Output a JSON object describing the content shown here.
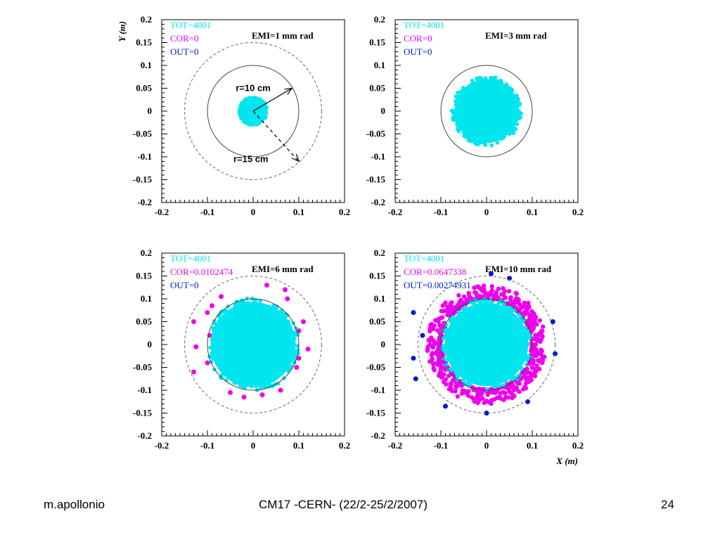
{
  "colors": {
    "tot": "#00e5ee",
    "cor": "#ee00ee",
    "out": "#0019cc",
    "frame": "#000000"
  },
  "footer": {
    "author": "m.apollonio",
    "title": "CM17 -CERN-  (22/2-25/2/2007)",
    "page": "24"
  },
  "chart_data": [
    {
      "type": "scatter",
      "title": "EMI=1 mm rad",
      "xlim": [
        -0.2,
        0.2
      ],
      "ylim": [
        -0.2,
        0.2
      ],
      "xticks": [
        "-0.2",
        "-0.1",
        "0",
        "0.1",
        "0.2"
      ],
      "yticks": [
        "0.2",
        "0.15",
        "0.1",
        "0.05",
        "0",
        "-0.05",
        "-0.1",
        "-0.15",
        "-0.2"
      ],
      "xlabel": "",
      "ylabel": "Y (m)",
      "legend": [
        "TOT=4001",
        "COR=0",
        "OUT=0"
      ],
      "core_radius": 0.03,
      "circles": [
        {
          "r": 0.1,
          "style": "solid"
        },
        {
          "r": 0.15,
          "style": "dashed"
        }
      ],
      "annotations": [
        {
          "text": "r=10 cm",
          "x": 0.0,
          "y": 0.05
        },
        {
          "text": "r=15 cm",
          "x": -0.005,
          "y": -0.105
        }
      ],
      "arrows": [
        {
          "from": [
            0,
            0
          ],
          "to": [
            0.085,
            0.05
          ],
          "style": "solid"
        },
        {
          "from": [
            0,
            0
          ],
          "to": [
            0.1,
            -0.11
          ],
          "style": "dashed"
        }
      ],
      "cor_points": [],
      "out_points": []
    },
    {
      "type": "scatter",
      "title": "EMI=3 mm rad",
      "xlim": [
        -0.2,
        0.2
      ],
      "ylim": [
        -0.2,
        0.2
      ],
      "xticks": [
        "-0.2",
        "-0.1",
        "0",
        "0.1",
        "0.2"
      ],
      "yticks": [
        "0.2",
        "0.15",
        "0.1",
        "0.05",
        "0",
        "-0.05",
        "-0.1",
        "-0.15",
        "-0.2"
      ],
      "xlabel": "",
      "ylabel": "",
      "legend": [
        "TOT=4001",
        "COR=0",
        "OUT=0"
      ],
      "core_radius": 0.075,
      "circles": [
        {
          "r": 0.1,
          "style": "solid"
        }
      ],
      "cor_points": [],
      "out_points": []
    },
    {
      "type": "scatter",
      "title": "EMI=6 mm rad",
      "xlim": [
        -0.2,
        0.2
      ],
      "ylim": [
        -0.2,
        0.2
      ],
      "xticks": [
        "-0.2",
        "-0.1",
        "0",
        "0.1",
        "0.2"
      ],
      "yticks": [
        "0.2",
        "0.15",
        "0.1",
        "0.05",
        "0",
        "-0.05",
        "-0.1",
        "-0.15",
        "-0.2"
      ],
      "xlabel": "",
      "ylabel": "",
      "legend": [
        "TOT=4001",
        "COR=0.0102474",
        "OUT=0"
      ],
      "core_radius": 0.1,
      "circles": [
        {
          "r": 0.1,
          "style": "solid"
        },
        {
          "r": 0.15,
          "style": "dashed"
        }
      ],
      "cor_points": [
        [
          0.03,
          0.13
        ],
        [
          0.07,
          0.12
        ],
        [
          -0.07,
          0.105
        ],
        [
          -0.13,
          0.05
        ],
        [
          -0.125,
          -0.005
        ],
        [
          -0.13,
          -0.06
        ],
        [
          0.11,
          0.05
        ],
        [
          0.12,
          -0.01
        ],
        [
          0.1,
          0.03
        ],
        [
          -0.1,
          0.07
        ],
        [
          -0.09,
          0.085
        ],
        [
          0.02,
          -0.11
        ],
        [
          -0.05,
          -0.105
        ],
        [
          0.06,
          -0.1
        ],
        [
          -0.02,
          -0.115
        ],
        [
          0.095,
          -0.05
        ],
        [
          -0.1,
          -0.04
        ],
        [
          -0.095,
          0.02
        ],
        [
          0.1,
          -0.03
        ],
        [
          0.075,
          0.1
        ]
      ],
      "out_points": []
    },
    {
      "type": "scatter",
      "title": "EMI=10 mm rad",
      "xlim": [
        -0.2,
        0.2
      ],
      "ylim": [
        -0.2,
        0.2
      ],
      "xticks": [
        "-0.2",
        "-0.1",
        "0",
        "0.1",
        "0.2"
      ],
      "yticks": [
        "0.2",
        "0.15",
        "0.1",
        "0.05",
        "0",
        "-0.05",
        "-0.1",
        "-0.15",
        "-0.2"
      ],
      "xlabel": "X (m)",
      "ylabel": "",
      "legend": [
        "TOT=4001",
        "COR=0.0647338",
        "OUT=0.00274931"
      ],
      "core_radius": 0.098,
      "cor_band": [
        0.098,
        0.13
      ],
      "circles": [
        {
          "r": 0.1,
          "style": "solid"
        },
        {
          "r": 0.15,
          "style": "dashed"
        }
      ],
      "cor_points": [],
      "out_points": [
        [
          0.05,
          0.145
        ],
        [
          -0.16,
          0.07
        ],
        [
          -0.16,
          -0.03
        ],
        [
          -0.155,
          -0.075
        ],
        [
          0.15,
          -0.02
        ],
        [
          0.09,
          -0.125
        ],
        [
          -0.09,
          -0.135
        ],
        [
          0.01,
          0.155
        ],
        [
          0.145,
          0.05
        ],
        [
          -0.14,
          0.02
        ],
        [
          0.0,
          -0.15
        ]
      ]
    }
  ]
}
